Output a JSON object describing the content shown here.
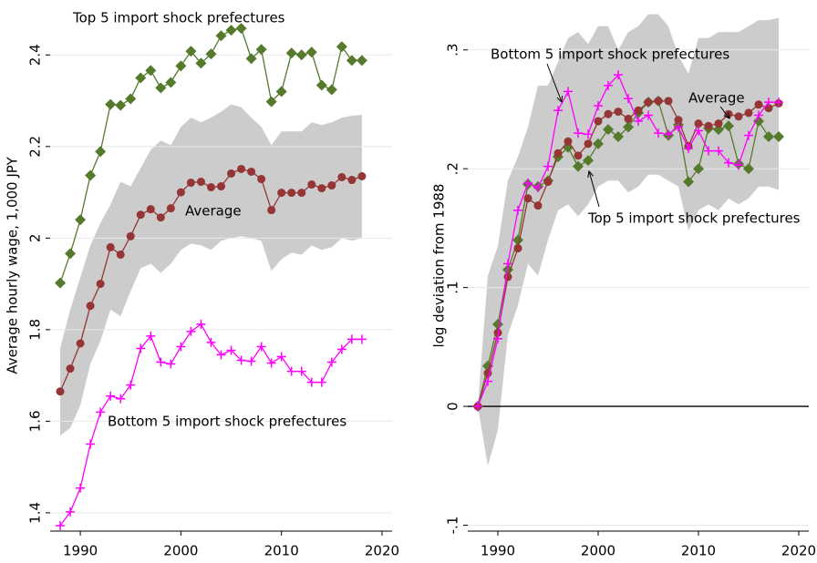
{
  "chart_data": [
    {
      "type": "line",
      "ylabel": "Average hourly wage, 1,000 JPY",
      "x": [
        1988,
        1989,
        1990,
        1991,
        1992,
        1993,
        1994,
        1995,
        1996,
        1997,
        1998,
        1999,
        2000,
        2001,
        2002,
        2003,
        2004,
        2005,
        2006,
        2007,
        2008,
        2009,
        2010,
        2011,
        2012,
        2013,
        2014,
        2015,
        2016,
        2017,
        2018
      ],
      "xlim": [
        1987,
        2021
      ],
      "xticks": [
        1990,
        2000,
        2010,
        2020
      ],
      "ylim": [
        1.36,
        2.52
      ],
      "yticks": [
        1.4,
        1.6,
        1.8,
        2,
        2.2,
        2.4
      ],
      "grid": true,
      "zero_line": false,
      "band": {
        "color": "#cccccc",
        "upper": [
          1.76,
          1.844,
          1.914,
          1.984,
          2.033,
          2.073,
          2.123,
          2.113,
          2.153,
          2.193,
          2.213,
          2.203,
          2.243,
          2.263,
          2.253,
          2.263,
          2.276,
          2.292,
          2.286,
          2.263,
          2.243,
          2.203,
          2.233,
          2.233,
          2.233,
          2.253,
          2.247,
          2.253,
          2.263,
          2.267,
          2.269
        ],
        "lower": [
          1.569,
          1.585,
          1.635,
          1.725,
          1.775,
          1.844,
          1.829,
          1.884,
          1.934,
          1.944,
          1.924,
          1.944,
          1.974,
          1.988,
          1.984,
          1.974,
          1.994,
          2.0,
          2.004,
          2.0,
          1.994,
          1.928,
          1.954,
          1.968,
          1.964,
          1.984,
          1.974,
          1.98,
          2.0,
          1.994,
          2.0
        ]
      },
      "series": [
        {
          "name": "Top 5 import shock prefectures",
          "color": "#557a2c",
          "marker": "diamond",
          "values": [
            1.902,
            1.966,
            2.04,
            2.137,
            2.189,
            2.292,
            2.29,
            2.304,
            2.35,
            2.366,
            2.328,
            2.34,
            2.376,
            2.408,
            2.382,
            2.402,
            2.442,
            2.454,
            2.458,
            2.392,
            2.412,
            2.298,
            2.32,
            2.404,
            2.4,
            2.406,
            2.334,
            2.324,
            2.418,
            2.388,
            2.388
          ]
        },
        {
          "name": "Average",
          "color": "#953535",
          "marker": "circle",
          "values": [
            1.665,
            1.715,
            1.77,
            1.852,
            1.9,
            1.98,
            1.964,
            2.004,
            2.051,
            2.063,
            2.045,
            2.065,
            2.1,
            2.121,
            2.123,
            2.111,
            2.113,
            2.141,
            2.151,
            2.145,
            2.129,
            2.061,
            2.099,
            2.099,
            2.099,
            2.117,
            2.109,
            2.115,
            2.133,
            2.127,
            2.135
          ]
        },
        {
          "name": "Bottom 5 import shock prefectures",
          "color": "#ff00ff",
          "marker": "plus",
          "values": [
            1.372,
            1.402,
            1.454,
            1.55,
            1.62,
            1.655,
            1.649,
            1.679,
            1.759,
            1.786,
            1.729,
            1.725,
            1.763,
            1.796,
            1.812,
            1.772,
            1.745,
            1.755,
            1.733,
            1.731,
            1.763,
            1.727,
            1.741,
            1.709,
            1.709,
            1.685,
            1.685,
            1.729,
            1.757,
            1.779,
            1.779
          ]
        }
      ]
    },
    {
      "type": "line",
      "ylabel": "log deviation from 1988",
      "x": [
        1988,
        1989,
        1990,
        1991,
        1992,
        1993,
        1994,
        1995,
        1996,
        1997,
        1998,
        1999,
        2000,
        2001,
        2002,
        2003,
        2004,
        2005,
        2006,
        2007,
        2008,
        2009,
        2010,
        2011,
        2012,
        2013,
        2014,
        2015,
        2016,
        2017,
        2018
      ],
      "xlim": [
        1987,
        2021
      ],
      "xticks": [
        1990,
        2000,
        2010,
        2020
      ],
      "ylim": [
        -0.105,
        0.342
      ],
      "yticks": [
        {
          "value": -0.1,
          "label": "-.1"
        },
        0,
        {
          "value": 0.1,
          "label": ".1"
        },
        {
          "value": 0.2,
          "label": ".2"
        },
        {
          "value": 0.3,
          "label": ".3"
        }
      ],
      "grid": true,
      "zero_line": true,
      "band": {
        "color": "#cccccc",
        "upper": [
          0,
          0.11,
          0.135,
          0.19,
          0.21,
          0.235,
          0.27,
          0.27,
          0.29,
          0.31,
          0.315,
          0.305,
          0.32,
          0.32,
          0.3,
          0.315,
          0.32,
          0.33,
          0.33,
          0.32,
          0.295,
          0.28,
          0.31,
          0.31,
          0.315,
          0.315,
          0.315,
          0.32,
          0.325,
          0.325,
          0.327
        ],
        "lower": [
          0,
          -0.05,
          -0.02,
          0.06,
          0.085,
          0.12,
          0.11,
          0.14,
          0.165,
          0.17,
          0.16,
          0.17,
          0.185,
          0.19,
          0.19,
          0.18,
          0.185,
          0.195,
          0.195,
          0.19,
          0.185,
          0.148,
          0.165,
          0.17,
          0.165,
          0.175,
          0.17,
          0.175,
          0.185,
          0.185,
          0.182
        ]
      },
      "series": [
        {
          "name": "Top 5 import shock prefectures",
          "color": "#557a2c",
          "marker": "diamond",
          "values": [
            0,
            0.034,
            0.069,
            0.115,
            0.14,
            0.187,
            0.185,
            0.19,
            0.21,
            0.218,
            0.202,
            0.207,
            0.221,
            0.233,
            0.227,
            0.235,
            0.247,
            0.256,
            0.257,
            0.228,
            0.237,
            0.189,
            0.2,
            0.234,
            0.233,
            0.236,
            0.204,
            0.2,
            0.24,
            0.227,
            0.227
          ]
        },
        {
          "name": "Average",
          "color": "#953535",
          "marker": "circle",
          "values": [
            0,
            0.028,
            0.062,
            0.109,
            0.133,
            0.175,
            0.169,
            0.189,
            0.213,
            0.223,
            0.211,
            0.221,
            0.24,
            0.246,
            0.248,
            0.242,
            0.249,
            0.256,
            0.257,
            0.257,
            0.241,
            0.219,
            0.238,
            0.236,
            0.238,
            0.246,
            0.244,
            0.247,
            0.254,
            0.251,
            0.255
          ]
        },
        {
          "name": "Bottom 5 import shock prefectures",
          "color": "#ff00ff",
          "marker": "plus",
          "values": [
            0,
            0.021,
            0.057,
            0.12,
            0.165,
            0.188,
            0.184,
            0.202,
            0.249,
            0.265,
            0.23,
            0.229,
            0.253,
            0.27,
            0.279,
            0.259,
            0.24,
            0.245,
            0.23,
            0.229,
            0.235,
            0.217,
            0.232,
            0.215,
            0.215,
            0.205,
            0.203,
            0.228,
            0.245,
            0.256,
            0.256
          ]
        }
      ]
    }
  ]
}
